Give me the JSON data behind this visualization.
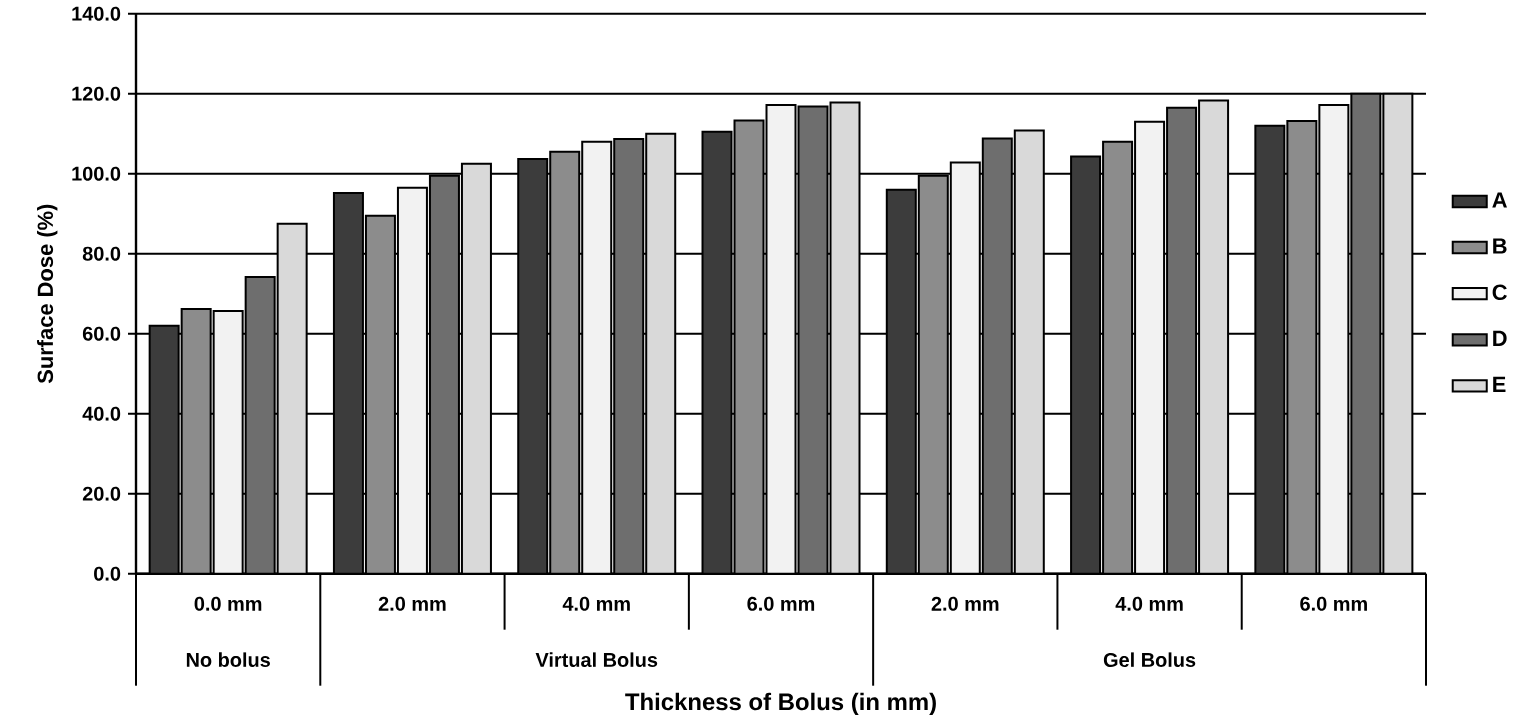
{
  "chart_data": {
    "type": "bar",
    "ylabel": "Surface Dose (%)",
    "xlabel": "Thickness of Bolus (in mm)",
    "categories": [
      "0.0 mm",
      "2.0 mm",
      "4.0 mm",
      "6.0 mm",
      "2.0 mm",
      "4.0 mm",
      "6.0 mm"
    ],
    "annotations": [
      "No bolus",
      "Virtual Bolus",
      "Gel Bolus"
    ],
    "series": [
      {
        "name": "A",
        "color": "#3c3c3c",
        "values": [
          62,
          95.2,
          103.7,
          110.5,
          96,
          104.3,
          112
        ]
      },
      {
        "name": "B",
        "color": "#8c8c8c",
        "values": [
          66.2,
          89.5,
          105.5,
          113.3,
          99.5,
          108,
          113.2
        ]
      },
      {
        "name": "C",
        "color": "#f2f2f2",
        "values": [
          65.7,
          96.5,
          108,
          117.2,
          102.8,
          113,
          117.2
        ]
      },
      {
        "name": "D",
        "color": "#6e6e6e",
        "values": [
          74.2,
          99.5,
          108.7,
          116.8,
          108.8,
          116.5,
          120
        ]
      },
      {
        "name": "E",
        "color": "#d9d9d9",
        "values": [
          87.5,
          102.5,
          110,
          117.8,
          110.8,
          118.3,
          120
        ]
      }
    ],
    "ylim": [
      0,
      140
    ],
    "yticks": [
      {
        "value": 0,
        "label": "0.0"
      },
      {
        "value": 20,
        "label": "20.0"
      },
      {
        "value": 40,
        "label": "40.0"
      },
      {
        "value": 60,
        "label": "60.0"
      },
      {
        "value": 80,
        "label": "80.0"
      },
      {
        "value": 100,
        "label": "100.0"
      },
      {
        "value": 120,
        "label": "120.0"
      },
      {
        "value": 140,
        "label": "140.0"
      }
    ],
    "grid": "y",
    "legend": "right"
  }
}
